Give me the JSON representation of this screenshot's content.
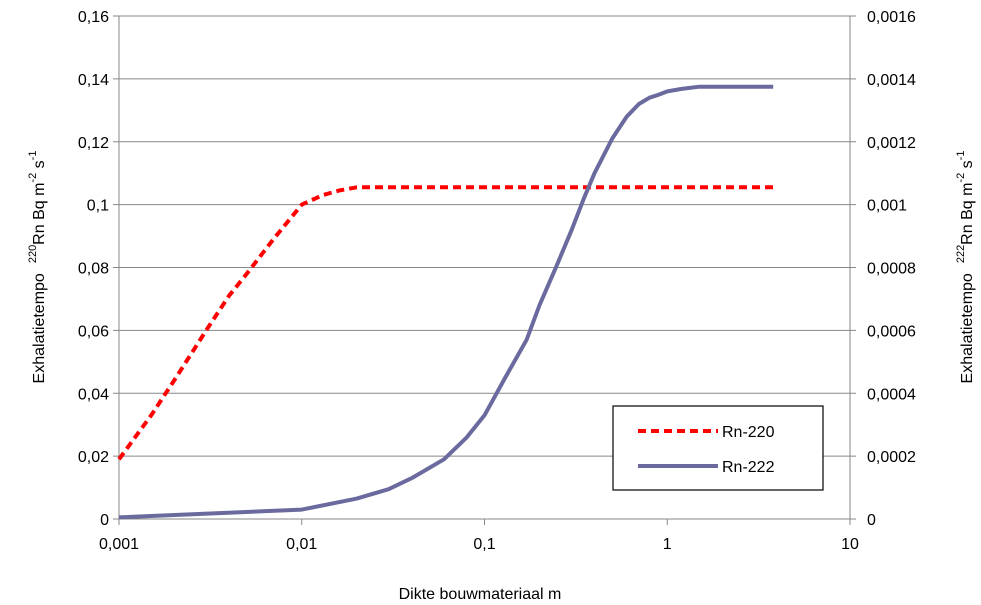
{
  "chart_data": {
    "type": "line",
    "title": "",
    "xlabel": "Dikte bouwmateriaal m",
    "x_scale": "log",
    "xlim": [
      0.001,
      10
    ],
    "x_ticks": [
      "0,001",
      "0,01",
      "0,1",
      "1",
      "10"
    ],
    "ylabel_left": {
      "prefix": "Exhalatietempo",
      "nuclide_mass": "220",
      "nuclide": "Rn Bq m",
      "exp1": "-2",
      "unit": " s",
      "exp2": "-1"
    },
    "ylabel_right": {
      "prefix": "Exhalatietempo",
      "nuclide_mass": "222",
      "nuclide": "Rn Bq m",
      "exp1": "-2",
      "unit": " s",
      "exp2": "-1"
    },
    "ylim_left": [
      0,
      0.16
    ],
    "ylim_right": [
      0,
      0.0016
    ],
    "y_ticks_left": [
      "0",
      "0,02",
      "0,04",
      "0,06",
      "0,08",
      "0,1",
      "0,12",
      "0,14",
      "0,16"
    ],
    "y_ticks_right": [
      "0",
      "0,0002",
      "0,0004",
      "0,0006",
      "0,0008",
      "0,001",
      "0,0012",
      "0,0014",
      "0,0016"
    ],
    "grid": "horizontal",
    "legend_position": "bottom-right",
    "series": [
      {
        "name": "Rn-220",
        "axis": "left",
        "color": "#ff0000",
        "style": "dashed",
        "x": [
          0.001,
          0.0015,
          0.002,
          0.003,
          0.004,
          0.005,
          0.007,
          0.01,
          0.013,
          0.016,
          0.02,
          0.03,
          0.05,
          0.1,
          0.3,
          1,
          3.8
        ],
        "y": [
          0.019,
          0.033,
          0.044,
          0.06,
          0.071,
          0.078,
          0.089,
          0.1,
          0.103,
          0.1045,
          0.1055,
          0.1055,
          0.1055,
          0.1055,
          0.1055,
          0.1055,
          0.1055
        ]
      },
      {
        "name": "Rn-222",
        "axis": "right",
        "color": "#6a6a9e",
        "style": "solid",
        "x": [
          0.001,
          0.01,
          0.02,
          0.03,
          0.04,
          0.06,
          0.08,
          0.1,
          0.13,
          0.17,
          0.2,
          0.25,
          0.3,
          0.35,
          0.4,
          0.5,
          0.6,
          0.7,
          0.8,
          0.9,
          1.0,
          1.2,
          1.5,
          2,
          3,
          3.8
        ],
        "y": [
          5e-06,
          3e-05,
          6.5e-05,
          9.5e-05,
          0.00013,
          0.00019,
          0.00026,
          0.00033,
          0.00045,
          0.00057,
          0.00068,
          0.00081,
          0.00092,
          0.00102,
          0.0011,
          0.00121,
          0.00128,
          0.00132,
          0.00134,
          0.00135,
          0.00136,
          0.001368,
          0.001375,
          0.001375,
          0.001375,
          0.001375
        ]
      }
    ]
  },
  "colors": {
    "grid": "#878787",
    "axis": "#878787",
    "rn220": "#ff0000",
    "rn222": "#6a6a9e"
  }
}
